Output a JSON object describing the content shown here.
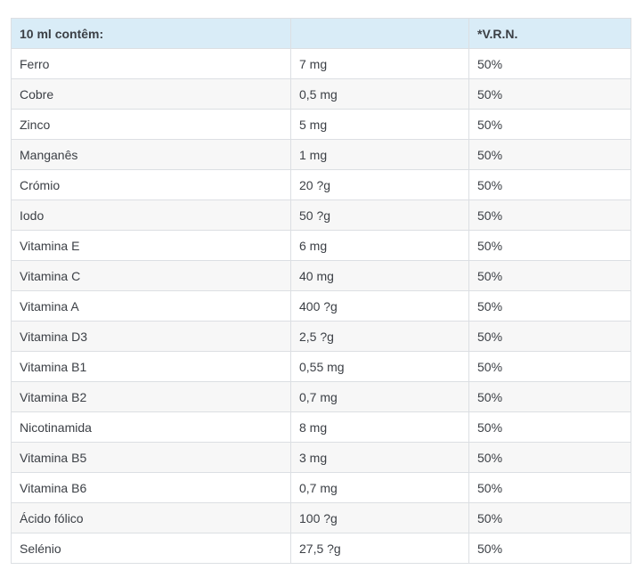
{
  "table": {
    "headers": [
      "10 ml contêm:",
      "",
      "*V.R.N."
    ],
    "rows": [
      [
        "Ferro",
        "7 mg",
        "50%"
      ],
      [
        "Cobre",
        "0,5 mg",
        "50%"
      ],
      [
        "Zinco",
        "5 mg",
        "50%"
      ],
      [
        "Manganês",
        "1 mg",
        "50%"
      ],
      [
        "Crómio",
        "20 ?g",
        "50%"
      ],
      [
        "Iodo",
        "50 ?g",
        "50%"
      ],
      [
        "Vitamina E",
        "6 mg",
        "50%"
      ],
      [
        "Vitamina C",
        "40 mg",
        "50%"
      ],
      [
        "Vitamina A",
        "400 ?g",
        "50%"
      ],
      [
        "Vitamina D3",
        "2,5 ?g",
        "50%"
      ],
      [
        "Vitamina B1",
        "0,55 mg",
        "50%"
      ],
      [
        "Vitamina B2",
        "0,7 mg",
        "50%"
      ],
      [
        "Nicotinamida",
        "8 mg",
        "50%"
      ],
      [
        "Vitamina B5",
        "3 mg",
        "50%"
      ],
      [
        "Vitamina B6",
        "0,7 mg",
        "50%"
      ],
      [
        "Ácido fólico",
        "100 ?g",
        "50%"
      ],
      [
        "Selénio",
        "27,5 ?g",
        "50%"
      ]
    ]
  }
}
